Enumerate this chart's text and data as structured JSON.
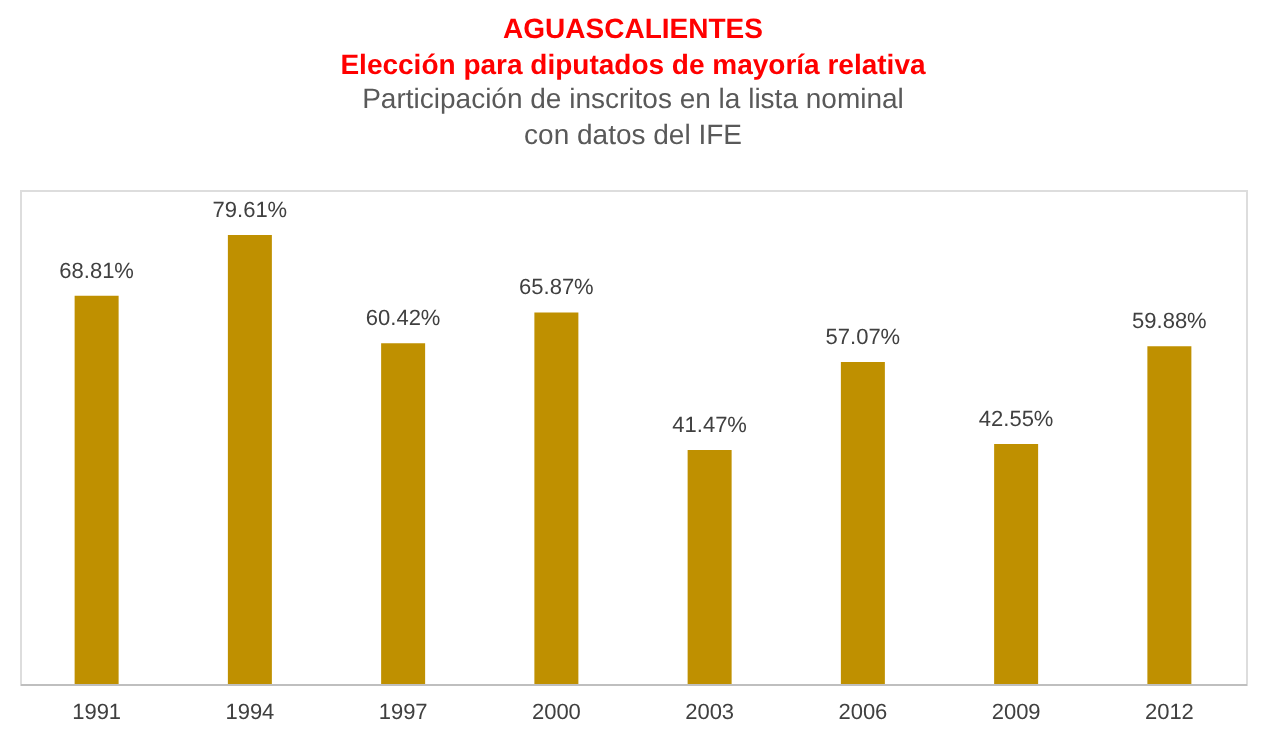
{
  "chart_data": {
    "type": "bar",
    "title": "AGUASCALIENTES",
    "subtitle": "Elección para diputados de mayoría relativa",
    "annotations": [
      "Participación de inscritos en la lista nominal",
      "con datos del IFE"
    ],
    "categories": [
      "1991",
      "1994",
      "1997",
      "2000",
      "2003",
      "2006",
      "2009",
      "2012"
    ],
    "values": [
      68.81,
      79.61,
      60.42,
      65.87,
      41.47,
      57.07,
      42.55,
      59.88
    ],
    "value_labels": [
      "68.81%",
      "79.61%",
      "60.42%",
      "65.87%",
      "41.47%",
      "57.07%",
      "42.55%",
      "59.88%"
    ],
    "color": "#bf9000",
    "grid": false
  }
}
